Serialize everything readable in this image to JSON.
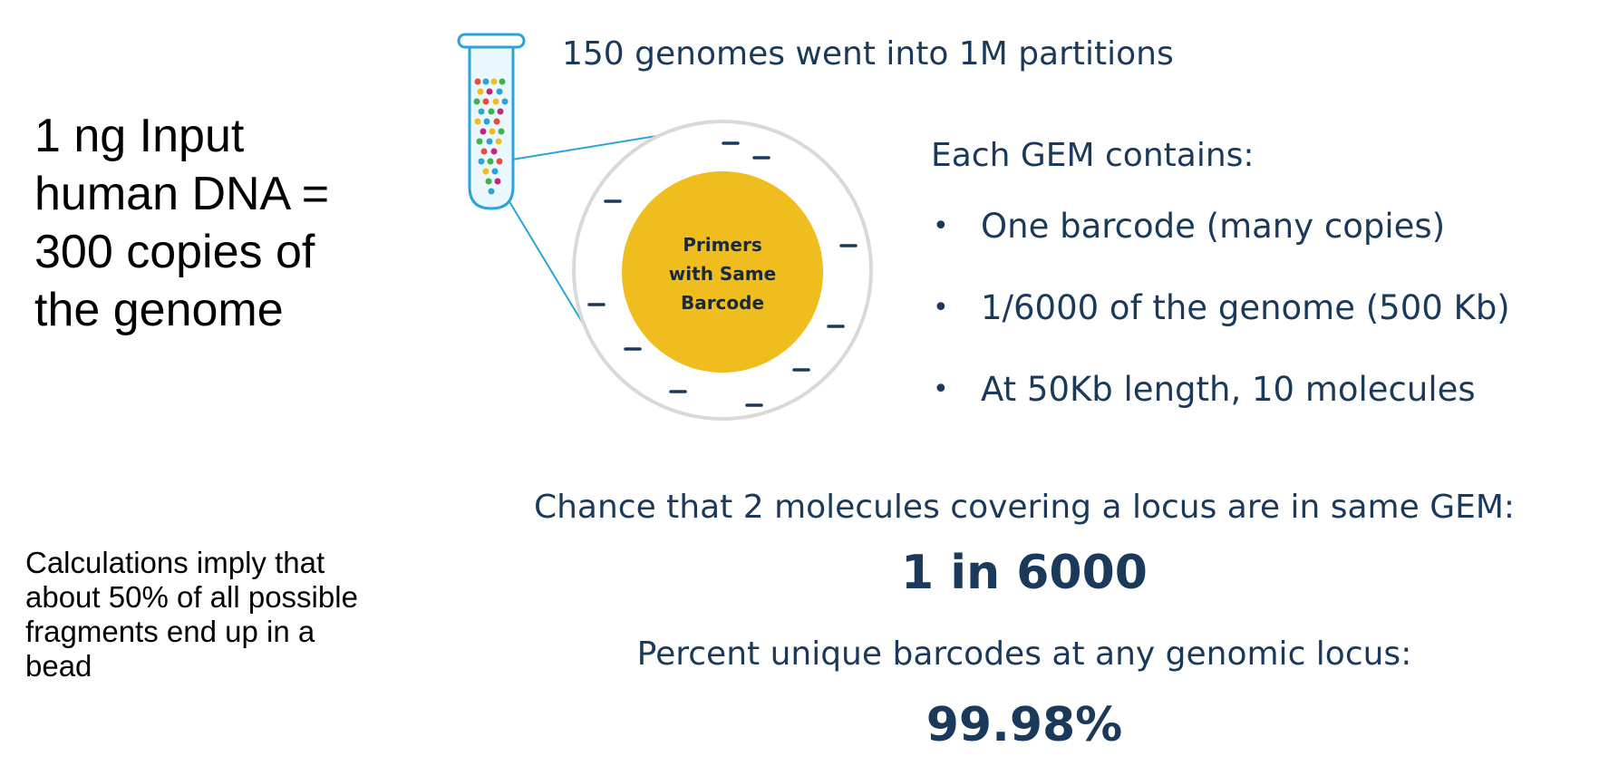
{
  "left_statement": {
    "lines": [
      "1 ng Input",
      "human DNA =",
      "300 copies of",
      "the genome"
    ]
  },
  "left_note": {
    "lines": [
      "Calculations imply that",
      "about 50% of all possible",
      "fragments end up in a",
      "bead"
    ]
  },
  "partitions_caption": "150 genomes went into 1M partitions",
  "bead": {
    "label_lines": [
      "Primers",
      "with Same",
      "Barcode"
    ],
    "color": "#f0bd1e"
  },
  "gem": {
    "heading": "Each GEM contains:",
    "bullet_glyph": "•",
    "items": [
      "One barcode (many copies)",
      "1/6000 of the genome (500 Kb)",
      "At 50Kb length, 10 molecules"
    ]
  },
  "chance": {
    "question": "Chance that 2 molecules covering a locus are in same GEM:",
    "answer": "1 in 6000"
  },
  "unique": {
    "question": "Percent unique barcodes at any genomic locus:",
    "answer": "99.98%"
  },
  "colors": {
    "navy_text": "#1b3a5b",
    "line_blue": "#2aa3d8",
    "dash": "#1b3a5b",
    "circle_outline": "#d9d9d9"
  }
}
